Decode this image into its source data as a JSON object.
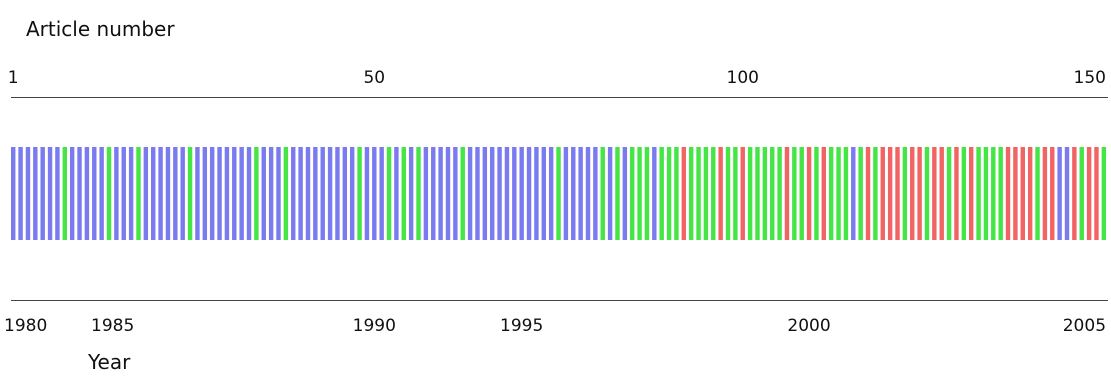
{
  "chart_data": {
    "type": "bar",
    "title": "",
    "top_axis": {
      "label": "Article number",
      "ticks": [
        {
          "value": 1,
          "label": "1"
        },
        {
          "value": 50,
          "label": "50"
        },
        {
          "value": 100,
          "label": "100"
        },
        {
          "value": 150,
          "label": "150"
        }
      ]
    },
    "bottom_axis": {
      "label": "Year",
      "ticks": [
        {
          "article": 2.5,
          "label": "1980"
        },
        {
          "article": 14.5,
          "label": "1985"
        },
        {
          "article": 50,
          "label": "1990"
        },
        {
          "article": 70,
          "label": "1995"
        },
        {
          "article": 109,
          "label": "2000"
        },
        {
          "article": 146.5,
          "label": "2005"
        }
      ]
    },
    "category_colors": {
      "B": "#7b7bf0",
      "G": "#44e544",
      "R": "#f26464"
    },
    "articles": "BBBBBBBGBBBBBGBBBGBBBBBBGBBBBBBBBGBBBGBBBBBBBBBGBBBGBGBGBBBBBGBBBBBBBBBBBBGBBBBBGBGBGGGBGGGRGGGGRGGRGGGGGRGGRGRGGGBGRGRRRGRRGRRGRGRGGGGRRRRGRRBBRGRRG"
  }
}
